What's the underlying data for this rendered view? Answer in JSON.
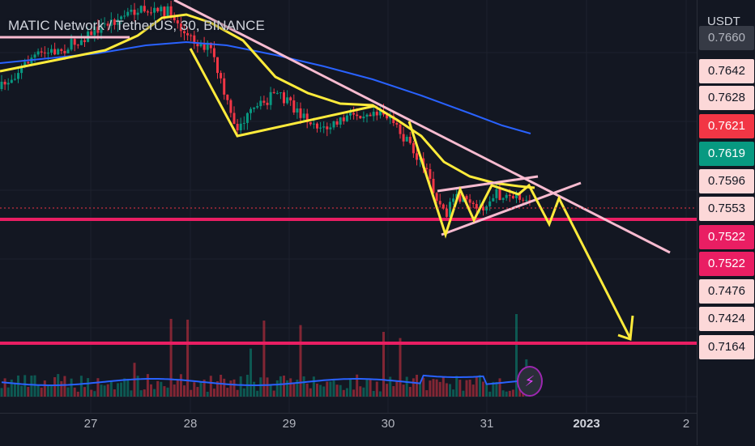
{
  "header": {
    "title": "MATIC Network / TetherUS, 30, BINANCE"
  },
  "price_axis": {
    "currency": "USDT",
    "tags": [
      {
        "label": "0.7660",
        "bg": "#363a45",
        "fg": "#b2b5be",
        "price": 0.766
      },
      {
        "label": "0.7642",
        "bg": "#fcd8d8",
        "fg": "#131722",
        "price": 0.7642
      },
      {
        "label": "0.7628",
        "bg": "#fcd8d8",
        "fg": "#131722",
        "price": 0.7628
      },
      {
        "label": "0.7621",
        "bg": "#f23645",
        "fg": "#ffffff",
        "price": 0.7621
      },
      {
        "label": "0.7619",
        "bg": "#089981",
        "fg": "#ffffff",
        "price": 0.7619
      },
      {
        "label": "0.7596",
        "bg": "#fcd8d8",
        "fg": "#131722",
        "price": 0.7596
      },
      {
        "label": "0.7553",
        "bg": "#fcd8d8",
        "fg": "#131722",
        "price": 0.7553
      },
      {
        "label": "0.7522",
        "bg": "#e91e63",
        "fg": "#ffffff",
        "price": 0.7522
      },
      {
        "label": "0.7522",
        "bg": "#e91e63",
        "fg": "#ffffff",
        "price": 0.7522
      },
      {
        "label": "0.7476",
        "bg": "#fcd8d8",
        "fg": "#131722",
        "price": 0.7476
      },
      {
        "label": "0.7424",
        "bg": "#fcd8d8",
        "fg": "#131722",
        "price": 0.7424
      },
      {
        "label": "0.7164",
        "bg": "#fcd8d8",
        "fg": "#131722",
        "price": 0.7164
      }
    ]
  },
  "time_axis": {
    "labels": [
      {
        "text": "27",
        "bold": false
      },
      {
        "text": "28",
        "bold": false
      },
      {
        "text": "29",
        "bold": false
      },
      {
        "text": "30",
        "bold": false
      },
      {
        "text": "31",
        "bold": false
      },
      {
        "text": "2023",
        "bold": true
      },
      {
        "text": "2",
        "bold": false
      }
    ]
  },
  "colors": {
    "background": "#131722",
    "grid": "#1e222d",
    "up": "#089981",
    "down": "#f23645",
    "ema_fast": "#ffeb3b",
    "ema_slow": "#2962ff",
    "trendline": "#f8bbd0",
    "hline": "#e91e63",
    "projection": "#ffeb3b"
  },
  "chart_data": {
    "type": "candlestick",
    "symbol": "MATIC Network / TetherUS",
    "interval": "30",
    "exchange": "BINANCE",
    "x_labels": [
      "27",
      "28",
      "29",
      "30",
      "31",
      "2023",
      "2"
    ],
    "horizontal_levels": [
      0.7522,
      0.7164
    ],
    "current_price": 0.7553,
    "notes_icon": "lightning-icon"
  }
}
